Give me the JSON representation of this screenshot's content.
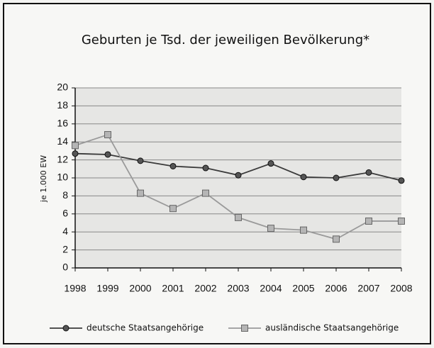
{
  "chart_data": {
    "type": "line",
    "title": "Geburten je Tsd. der jeweiligen Bevölkerung*",
    "y_label": "je 1.000 EW",
    "categories": [
      "1998",
      "1999",
      "2000",
      "2001",
      "2002",
      "2003",
      "2004",
      "2005",
      "2006",
      "2007",
      "2008"
    ],
    "series": [
      {
        "name": "deutsche Staatsangehörige",
        "color": "#3a3a3a",
        "marker": "circle",
        "values": [
          12.7,
          12.6,
          11.9,
          11.3,
          11.1,
          10.3,
          11.6,
          10.1,
          10.0,
          10.6,
          9.7
        ]
      },
      {
        "name": "ausländische Staatsangehörige",
        "color": "#9a9a9a",
        "marker": "square",
        "values": [
          13.6,
          14.8,
          8.3,
          6.6,
          8.3,
          5.6,
          4.4,
          4.2,
          3.2,
          5.2,
          5.2
        ]
      }
    ],
    "ylim": [
      0,
      20
    ],
    "yticks": [
      0,
      2,
      4,
      6,
      8,
      10,
      12,
      14,
      16,
      18,
      20
    ],
    "grid": true,
    "legend": "bottom"
  }
}
